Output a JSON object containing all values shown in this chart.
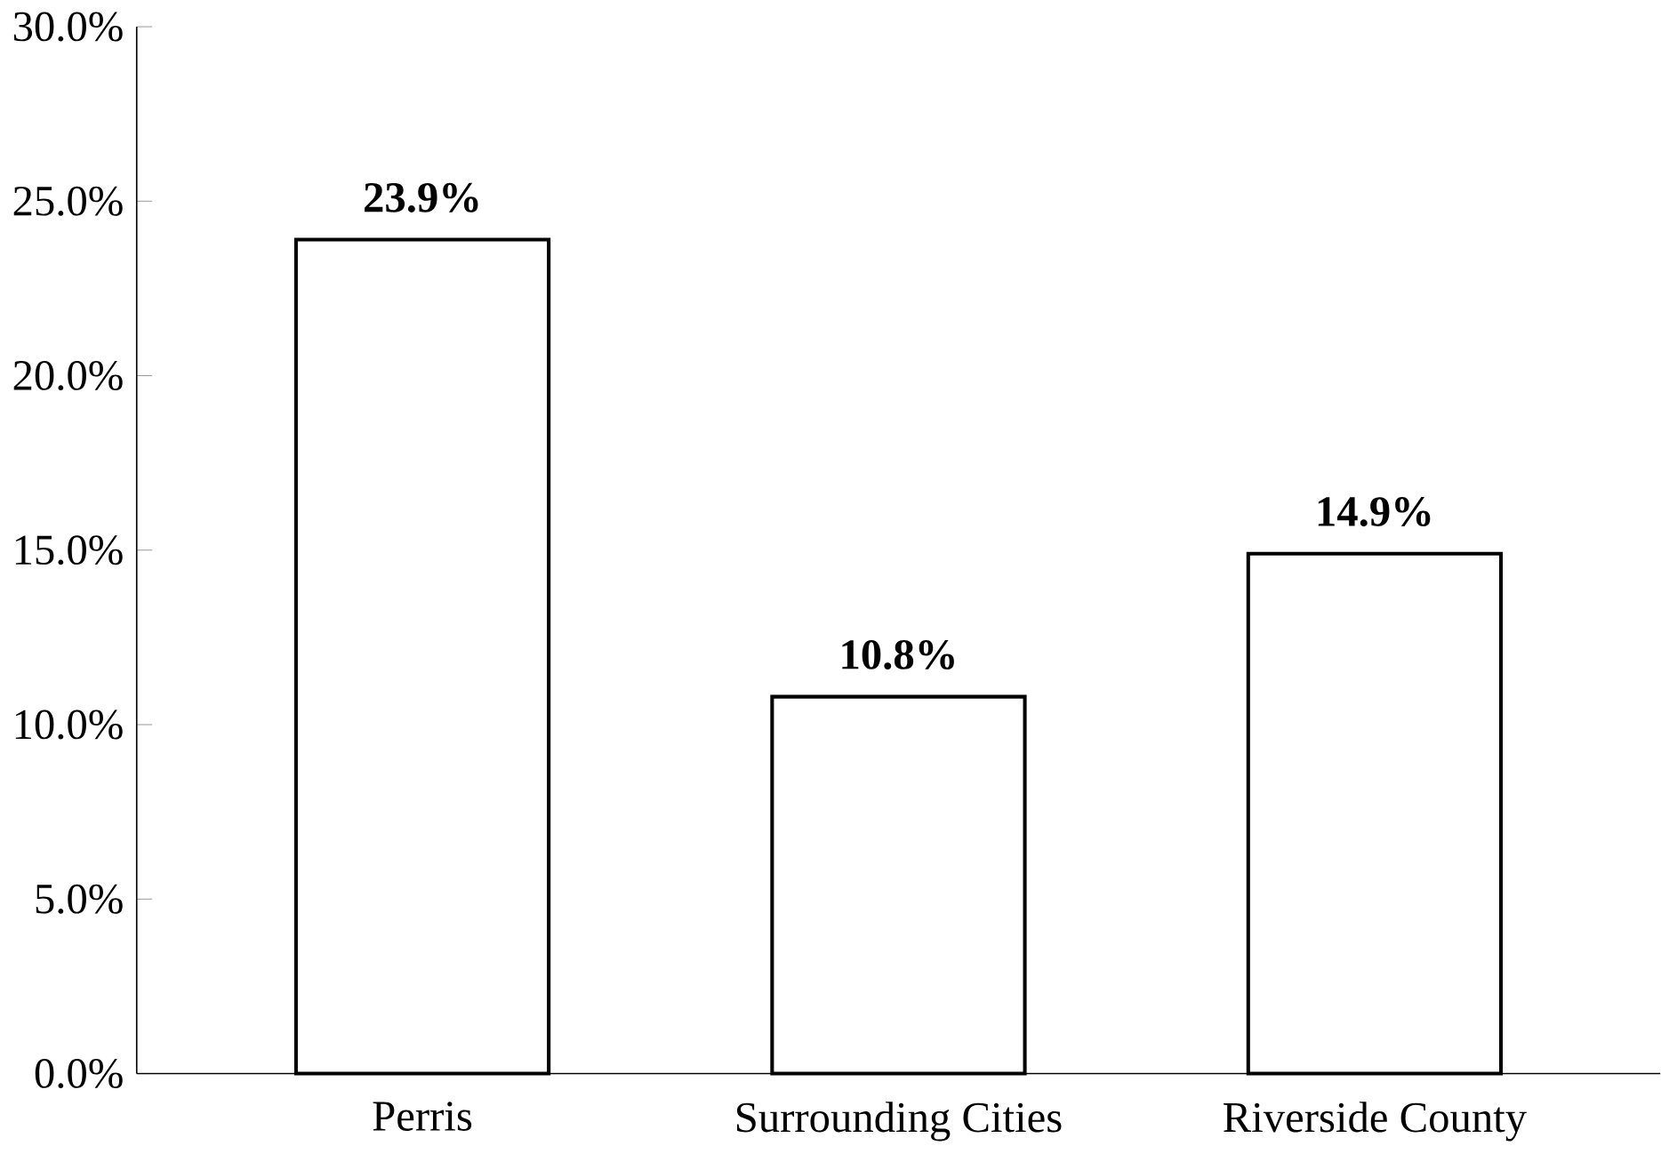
{
  "chart_data": {
    "type": "bar",
    "categories": [
      "Perris",
      "Surrounding Cities",
      "Riverside County"
    ],
    "values": [
      23.9,
      10.8,
      14.9
    ],
    "value_labels": [
      "23.9%",
      "10.8%",
      "14.9%"
    ],
    "color": "#ffffff",
    "ylim": [
      0,
      30
    ],
    "yticks": [
      {
        "value": 0,
        "label": "0.0%"
      },
      {
        "value": 5,
        "label": "5.0%"
      },
      {
        "value": 10,
        "label": "10.0%"
      },
      {
        "value": 15,
        "label": "15.0%"
      },
      {
        "value": 20,
        "label": "20.0%"
      },
      {
        "value": 25,
        "label": "25.0%"
      },
      {
        "value": 30,
        "label": "30.0%"
      }
    ]
  }
}
